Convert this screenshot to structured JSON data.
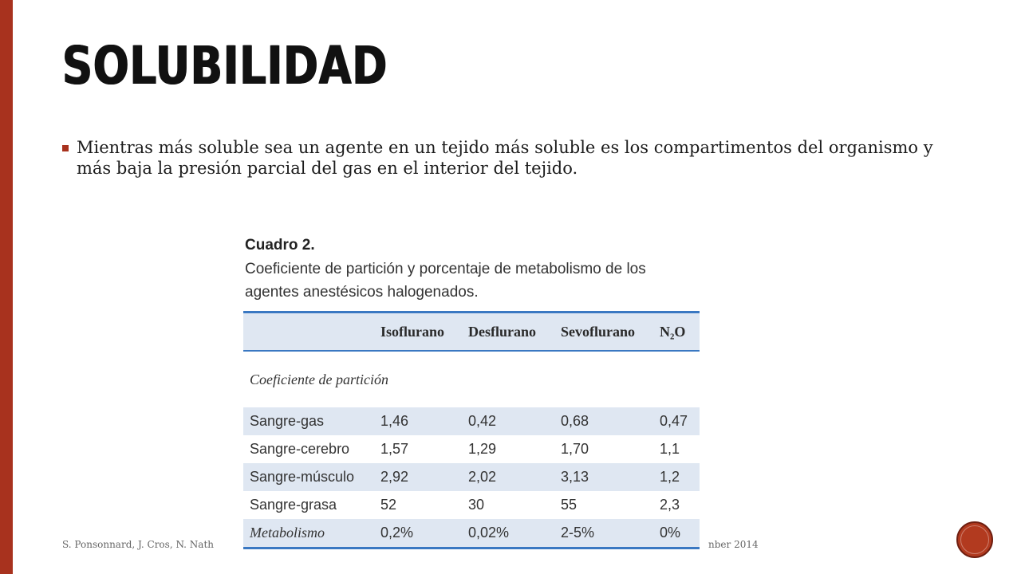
{
  "slide": {
    "title": "SOLUBILIDAD",
    "bullet": "Mientras más soluble sea un agente en un tejido más soluble es los compartimentos del organismo y más baja la presión parcial del gas en el interior del tejido.",
    "footer_left": "S. Ponsonnard, J. Cros, N. Nath",
    "footer_right": "nber 2014",
    "page_number": "",
    "accent_color": "#a8321e"
  },
  "figure": {
    "heading": "Cuadro 2.",
    "caption": "Coeficiente de partición y porcentaje de metabolismo de los agentes anestésicos halogenados.",
    "columns": [
      "",
      "Isoflurano",
      "Desflurano",
      "Sevoflurano",
      "N₂O"
    ],
    "section_label": "Coeficiente de partición",
    "rows": [
      {
        "label": "Sangre-gas",
        "values": [
          "1,46",
          "0,42",
          "0,68",
          "0,47"
        ]
      },
      {
        "label": "Sangre-cerebro",
        "values": [
          "1,57",
          "1,29",
          "1,70",
          "1,1"
        ]
      },
      {
        "label": "Sangre-músculo",
        "values": [
          "2,92",
          "2,02",
          "3,13",
          "1,2"
        ]
      },
      {
        "label": "Sangre-grasa",
        "values": [
          "52",
          "30",
          "55",
          "2,3"
        ]
      }
    ],
    "metabolism": {
      "label": "Metabolismo",
      "values": [
        "0,2%",
        "0,02%",
        "2-5%",
        "0%"
      ]
    }
  }
}
